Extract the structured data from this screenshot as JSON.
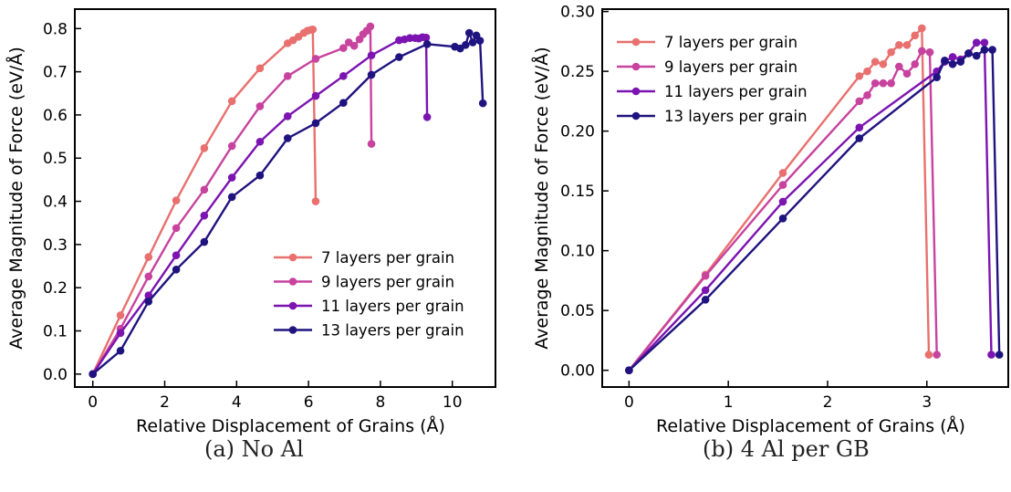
{
  "chart_data": [
    {
      "type": "line",
      "caption": "(a) No Al",
      "xlabel": "Relative Displacement of Grains (Å)",
      "ylabel": "Average Magnitude of Force (eV/Å)",
      "xlim": [
        -0.5,
        11.2
      ],
      "ylim": [
        -0.03,
        0.845
      ],
      "xticks": [
        0,
        2,
        4,
        6,
        8,
        10
      ],
      "yticks": [
        0.0,
        0.1,
        0.2,
        0.3,
        0.4,
        0.5,
        0.6,
        0.7,
        0.8
      ],
      "ytick_decimals": 1,
      "legend_loc": "lower right",
      "series": [
        {
          "name": "7 layers per grain",
          "color": "#e8706e",
          "x": [
            0,
            0.77,
            1.55,
            2.32,
            3.1,
            3.87,
            4.65,
            5.42,
            5.57,
            5.72,
            5.87,
            5.97,
            6.07,
            6.12,
            6.2
          ],
          "y": [
            0.0,
            0.136,
            0.271,
            0.402,
            0.523,
            0.632,
            0.708,
            0.766,
            0.773,
            0.781,
            0.79,
            0.795,
            0.797,
            0.798,
            0.4
          ]
        },
        {
          "name": "9 layers per grain",
          "color": "#c7439e",
          "x": [
            0,
            0.77,
            1.55,
            2.32,
            3.1,
            3.87,
            4.65,
            5.42,
            6.2,
            6.97,
            7.12,
            7.27,
            7.42,
            7.52,
            7.62,
            7.72,
            7.75
          ],
          "y": [
            0.0,
            0.105,
            0.226,
            0.338,
            0.427,
            0.528,
            0.62,
            0.69,
            0.73,
            0.755,
            0.768,
            0.76,
            0.775,
            0.787,
            0.795,
            0.805,
            0.533
          ]
        },
        {
          "name": "11 layers per grain",
          "color": "#7b14b0",
          "x": [
            0,
            0.77,
            1.55,
            2.32,
            3.1,
            3.87,
            4.65,
            5.42,
            6.2,
            6.97,
            7.75,
            8.52,
            8.67,
            8.82,
            8.97,
            9.07,
            9.17,
            9.27,
            9.3
          ],
          "y": [
            0.0,
            0.095,
            0.182,
            0.275,
            0.367,
            0.455,
            0.538,
            0.597,
            0.644,
            0.69,
            0.738,
            0.773,
            0.775,
            0.778,
            0.778,
            0.777,
            0.78,
            0.779,
            0.595
          ]
        },
        {
          "name": "13 layers per grain",
          "color": "#1f137f",
          "x": [
            0,
            0.77,
            1.55,
            2.32,
            3.1,
            3.87,
            4.65,
            5.42,
            6.2,
            6.97,
            7.75,
            8.52,
            9.3,
            10.07,
            10.22,
            10.37,
            10.47,
            10.57,
            10.67,
            10.77,
            10.85
          ],
          "y": [
            0.0,
            0.054,
            0.168,
            0.242,
            0.306,
            0.41,
            0.46,
            0.546,
            0.581,
            0.628,
            0.693,
            0.734,
            0.764,
            0.758,
            0.754,
            0.762,
            0.79,
            0.768,
            0.784,
            0.772,
            0.627
          ]
        }
      ]
    },
    {
      "type": "line",
      "caption": "(b) 4 Al per GB",
      "xlabel": "Relative Displacement of Grains (Å)",
      "ylabel": "Average Magnitude of Force (eV/Å)",
      "xlim": [
        -0.27,
        3.82
      ],
      "ylim": [
        -0.014,
        0.302
      ],
      "xticks": [
        0,
        1,
        2,
        3
      ],
      "yticks": [
        0.0,
        0.05,
        0.1,
        0.15,
        0.2,
        0.25,
        0.3
      ],
      "ytick_decimals": 2,
      "legend_loc": "upper left",
      "series": [
        {
          "name": "7 layers per grain",
          "color": "#e8706e",
          "x": [
            0,
            0.77,
            1.55,
            2.32,
            2.4,
            2.48,
            2.56,
            2.64,
            2.72,
            2.8,
            2.88,
            2.95,
            3.02
          ],
          "y": [
            0.0,
            0.08,
            0.165,
            0.246,
            0.25,
            0.258,
            0.256,
            0.266,
            0.272,
            0.272,
            0.28,
            0.286,
            0.013
          ]
        },
        {
          "name": "9 layers per grain",
          "color": "#c7439e",
          "x": [
            0,
            0.77,
            1.55,
            2.32,
            2.4,
            2.48,
            2.56,
            2.64,
            2.72,
            2.8,
            2.88,
            2.95,
            3.03,
            3.1
          ],
          "y": [
            0.0,
            0.079,
            0.155,
            0.225,
            0.23,
            0.24,
            0.24,
            0.24,
            0.254,
            0.248,
            0.256,
            0.267,
            0.266,
            0.013
          ]
        },
        {
          "name": "11 layers per grain",
          "color": "#7b14b0",
          "x": [
            0,
            0.77,
            1.55,
            2.32,
            3.1,
            3.18,
            3.26,
            3.34,
            3.42,
            3.5,
            3.58,
            3.65
          ],
          "y": [
            0.0,
            0.067,
            0.141,
            0.203,
            0.25,
            0.258,
            0.262,
            0.26,
            0.265,
            0.274,
            0.274,
            0.013
          ]
        },
        {
          "name": "13 layers per grain",
          "color": "#1f137f",
          "x": [
            0,
            0.77,
            1.55,
            2.32,
            3.1,
            3.18,
            3.26,
            3.34,
            3.42,
            3.5,
            3.58,
            3.66,
            3.73
          ],
          "y": [
            0.0,
            0.059,
            0.127,
            0.194,
            0.245,
            0.259,
            0.256,
            0.258,
            0.265,
            0.263,
            0.268,
            0.268,
            0.013
          ]
        }
      ]
    }
  ]
}
